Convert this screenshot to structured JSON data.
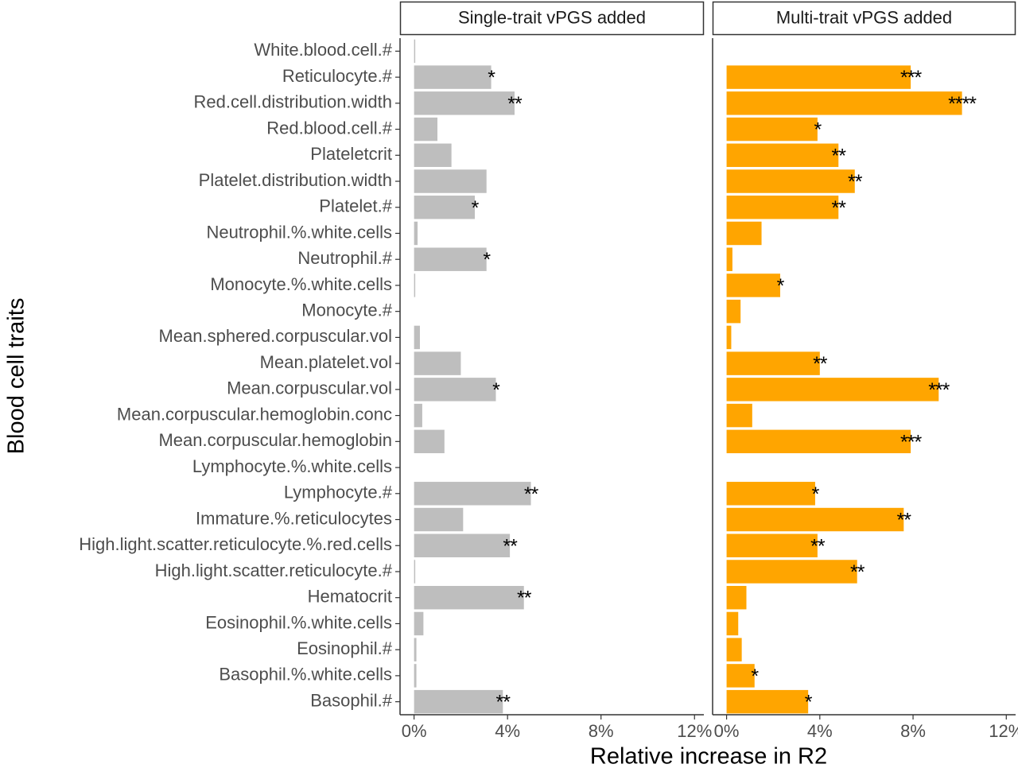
{
  "chart_data": {
    "type": "bar",
    "orientation": "horizontal",
    "ylabel": "Blood cell traits",
    "xlabel": "Relative increase in R2",
    "x_ticks": [
      "0%",
      "4%",
      "8%",
      "12%"
    ],
    "x_tick_values": [
      0,
      4,
      8,
      12
    ],
    "xlim": [
      -0.6,
      12.4
    ],
    "grid": false,
    "categories": [
      "White.blood.cell.#",
      "Reticulocyte.#",
      "Red.cell.distribution.width",
      "Red.blood.cell.#",
      "Plateletcrit",
      "Platelet.distribution.width",
      "Platelet.#",
      "Neutrophil.%.white.cells",
      "Neutrophil.#",
      "Monocyte.%.white.cells",
      "Monocyte.#",
      "Mean.sphered.corpuscular.vol",
      "Mean.platelet.vol",
      "Mean.corpuscular.vol",
      "Mean.corpuscular.hemoglobin.conc",
      "Mean.corpuscular.hemoglobin",
      "Lymphocyte.%.white.cells",
      "Lymphocyte.#",
      "Immature.%.reticulocytes",
      "High.light.scatter.reticulocyte.%.red.cells",
      "High.light.scatter.reticulocyte.#",
      "Hematocrit",
      "Eosinophil.%.white.cells",
      "Eosinophil.#",
      "Basophil.%.white.cells",
      "Basophil.#"
    ],
    "panels": [
      {
        "strip": "Single-trait vPGS added",
        "color": "#bebebe",
        "values": [
          0.05,
          3.3,
          4.3,
          1.0,
          1.6,
          3.1,
          2.6,
          0.15,
          3.1,
          0.05,
          0.0,
          0.25,
          2.0,
          3.5,
          0.35,
          1.3,
          0.0,
          5.0,
          2.1,
          4.1,
          0.05,
          4.7,
          0.4,
          0.1,
          0.1,
          3.8
        ],
        "significance": [
          "",
          "*",
          "**",
          "",
          "",
          "",
          "*",
          "",
          "*",
          "",
          "",
          "",
          "",
          "*",
          "",
          "",
          "",
          "**",
          "",
          "**",
          "",
          "**",
          "",
          "",
          "",
          "**"
        ]
      },
      {
        "strip": "Multi-trait vPGS added",
        "color": "#ffa500",
        "values": [
          0.0,
          7.9,
          10.1,
          3.9,
          4.8,
          5.5,
          4.8,
          1.5,
          0.25,
          2.3,
          0.6,
          0.2,
          4.0,
          9.1,
          1.1,
          7.9,
          0.0,
          3.8,
          7.6,
          3.9,
          5.6,
          0.85,
          0.5,
          0.65,
          1.2,
          3.5
        ],
        "significance": [
          "",
          "***",
          "****",
          "*",
          "**",
          "**",
          "**",
          "",
          "",
          "*",
          "",
          "",
          "**",
          "***",
          "",
          "***",
          "",
          "*",
          "**",
          "**",
          "**",
          "",
          "",
          "",
          "*",
          "*"
        ]
      }
    ]
  }
}
